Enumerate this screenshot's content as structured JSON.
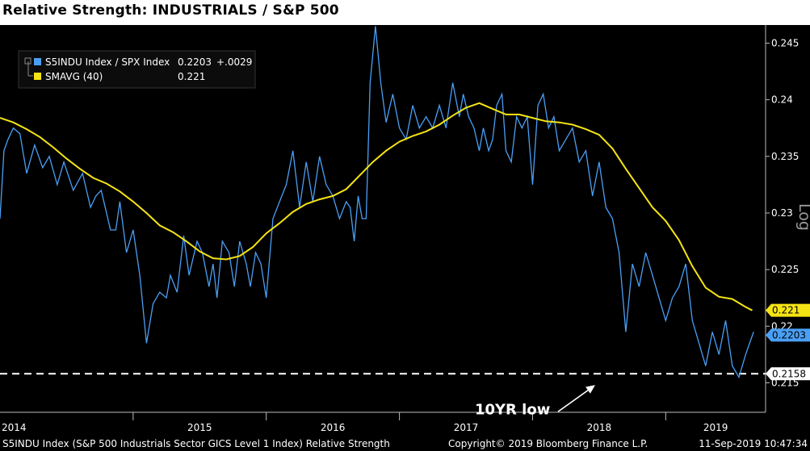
{
  "title": "Relative Strength: INDUSTRIALS / S&P 500",
  "footer": {
    "left": "S5INDU Index (S&P 500 Industrials Sector GICS Level 1 Index) Relative Strength",
    "copyright": "Copyright© 2019 Bloomberg Finance L.P.",
    "timestamp": "11-Sep-2019 10:47:34"
  },
  "chart_data": {
    "type": "line",
    "title": "Relative Strength: INDUSTRIALS / S&P 500",
    "x_tick_labels": [
      "2014",
      "2015",
      "2016",
      "2017",
      "2018",
      "2019"
    ],
    "x_range": [
      2014.0,
      2019.75
    ],
    "y_ticks": [
      0.215,
      0.22,
      0.225,
      0.23,
      0.235,
      0.24,
      0.245
    ],
    "y_tick_labels": [
      "0.215",
      "0.22",
      "0.225",
      "0.23",
      "0.235",
      "0.24",
      "0.245"
    ],
    "ylim": [
      0.2124,
      0.2466
    ],
    "scale_label": "Log",
    "grid": false,
    "legend": {
      "position": "top-left",
      "entries": [
        {
          "name": "S5INDU Index / SPX Index",
          "value": "0.2203",
          "change": "+.0029",
          "color": "#4a9ff5"
        },
        {
          "name": "SMAVG (40)",
          "value": "0.221",
          "change": "",
          "color": "#f5e414"
        }
      ]
    },
    "series": [
      {
        "name": "S5INDU Index / SPX Index",
        "color": "#4a9ff5",
        "x": [
          2014.0,
          2014.03,
          2014.06,
          2014.1,
          2014.15,
          2014.2,
          2014.26,
          2014.32,
          2014.37,
          2014.43,
          2014.48,
          2014.55,
          2014.62,
          2014.68,
          2014.72,
          2014.76,
          2014.8,
          2014.83,
          2014.87,
          2014.9,
          2014.95,
          2015.0,
          2015.05,
          2015.1,
          2015.15,
          2015.2,
          2015.25,
          2015.28,
          2015.33,
          2015.38,
          2015.42,
          2015.48,
          2015.52,
          2015.57,
          2015.6,
          2015.63,
          2015.67,
          2015.72,
          2015.76,
          2015.8,
          2015.85,
          2015.88,
          2015.92,
          2015.96,
          2016.0,
          2016.05,
          2016.1,
          2016.15,
          2016.2,
          2016.25,
          2016.3,
          2016.35,
          2016.4,
          2016.45,
          2016.5,
          2016.55,
          2016.6,
          2016.63,
          2016.66,
          2016.69,
          2016.72,
          2016.75,
          2016.78,
          2016.82,
          2016.86,
          2016.9,
          2016.95,
          2017.0,
          2017.05,
          2017.1,
          2017.15,
          2017.2,
          2017.25,
          2017.3,
          2017.35,
          2017.4,
          2017.45,
          2017.48,
          2017.52,
          2017.56,
          2017.6,
          2017.63,
          2017.67,
          2017.7,
          2017.73,
          2017.77,
          2017.8,
          2017.84,
          2017.88,
          2017.92,
          2017.96,
          2018.0,
          2018.04,
          2018.08,
          2018.12,
          2018.16,
          2018.2,
          2018.25,
          2018.3,
          2018.35,
          2018.4,
          2018.45,
          2018.5,
          2018.55,
          2018.6,
          2018.65,
          2018.7,
          2018.75,
          2018.8,
          2018.85,
          2018.9,
          2018.95,
          2019.0,
          2019.05,
          2019.1,
          2019.15,
          2019.2,
          2019.25,
          2019.3,
          2019.35,
          2019.4,
          2019.45,
          2019.5,
          2019.55,
          2019.6,
          2019.63,
          2019.66
        ],
        "y": [
          0.2295,
          0.2355,
          0.2365,
          0.2375,
          0.237,
          0.2335,
          0.236,
          0.234,
          0.235,
          0.2325,
          0.2345,
          0.232,
          0.2335,
          0.2305,
          0.2315,
          0.232,
          0.23,
          0.2285,
          0.2285,
          0.231,
          0.2265,
          0.2285,
          0.2245,
          0.2185,
          0.222,
          0.223,
          0.2225,
          0.2245,
          0.223,
          0.228,
          0.2245,
          0.2275,
          0.2265,
          0.2235,
          0.2255,
          0.2225,
          0.2275,
          0.2265,
          0.2235,
          0.2275,
          0.2255,
          0.2235,
          0.2265,
          0.2255,
          0.2225,
          0.2295,
          0.231,
          0.2325,
          0.2355,
          0.2305,
          0.2345,
          0.231,
          0.235,
          0.2325,
          0.2315,
          0.2295,
          0.231,
          0.2305,
          0.2275,
          0.2315,
          0.2295,
          0.2295,
          0.2415,
          0.2465,
          0.2415,
          0.238,
          0.2405,
          0.2375,
          0.2365,
          0.2395,
          0.2375,
          0.2385,
          0.2375,
          0.2395,
          0.2375,
          0.2415,
          0.2385,
          0.2405,
          0.2385,
          0.2375,
          0.2355,
          0.2375,
          0.2355,
          0.2365,
          0.2395,
          0.2405,
          0.2355,
          0.2345,
          0.2385,
          0.2375,
          0.2385,
          0.2325,
          0.2395,
          0.2405,
          0.2375,
          0.2385,
          0.2355,
          0.2365,
          0.2375,
          0.2345,
          0.2355,
          0.2315,
          0.2345,
          0.2305,
          0.2295,
          0.2265,
          0.2195,
          0.2255,
          0.2235,
          0.2265,
          0.2245,
          0.2225,
          0.2205,
          0.2225,
          0.2235,
          0.2255,
          0.2205,
          0.2185,
          0.2165,
          0.2195,
          0.2175,
          0.2205,
          0.2165,
          0.2155,
          0.2175,
          0.2185,
          0.2195
        ],
        "last_value_label": "0.2203"
      },
      {
        "name": "SMAVG (40)",
        "color": "#f5e414",
        "x": [
          2014.0,
          2014.1,
          2014.2,
          2014.3,
          2014.4,
          2014.5,
          2014.6,
          2014.7,
          2014.8,
          2014.9,
          2015.0,
          2015.1,
          2015.2,
          2015.3,
          2015.4,
          2015.5,
          2015.6,
          2015.7,
          2015.8,
          2015.9,
          2016.0,
          2016.1,
          2016.2,
          2016.3,
          2016.4,
          2016.5,
          2016.6,
          2016.7,
          2016.8,
          2016.9,
          2017.0,
          2017.1,
          2017.2,
          2017.3,
          2017.4,
          2017.5,
          2017.6,
          2017.7,
          2017.8,
          2017.9,
          2018.0,
          2018.1,
          2018.2,
          2018.3,
          2018.4,
          2018.5,
          2018.6,
          2018.7,
          2018.8,
          2018.9,
          2019.0,
          2019.1,
          2019.2,
          2019.3,
          2019.4,
          2019.5,
          2019.6,
          2019.65
        ],
        "y": [
          0.2384,
          0.238,
          0.2374,
          0.2367,
          0.2358,
          0.2348,
          0.2339,
          0.2331,
          0.2326,
          0.2319,
          0.231,
          0.23,
          0.2289,
          0.2283,
          0.2275,
          0.2266,
          0.226,
          0.2259,
          0.2262,
          0.227,
          0.2282,
          0.2291,
          0.2301,
          0.2308,
          0.2312,
          0.2315,
          0.2321,
          0.2333,
          0.2345,
          0.2355,
          0.2363,
          0.2368,
          0.2372,
          0.2378,
          0.2386,
          0.2393,
          0.2397,
          0.2392,
          0.2387,
          0.2387,
          0.2384,
          0.2381,
          0.238,
          0.2378,
          0.2374,
          0.2369,
          0.2357,
          0.2339,
          0.2322,
          0.2305,
          0.2293,
          0.2276,
          0.2253,
          0.2234,
          0.2226,
          0.2224,
          0.2217,
          0.2214
        ],
        "last_value_label": "0.221"
      }
    ],
    "annotations": [
      {
        "type": "hline",
        "y": 0.2158,
        "label": "0.2158",
        "style": "dashed"
      },
      {
        "type": "text",
        "text": "10YR low",
        "arrow_to": {
          "x": 2018.47,
          "y": 0.2158
        }
      }
    ]
  }
}
